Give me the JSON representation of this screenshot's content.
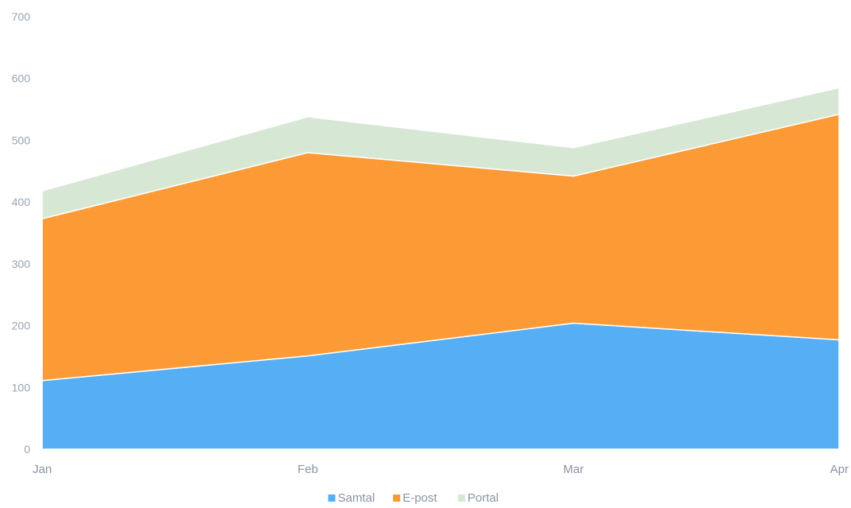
{
  "chart_data": {
    "type": "area",
    "stacked": true,
    "categories": [
      "Jan",
      "Feb",
      "Mar",
      "Apr"
    ],
    "series": [
      {
        "name": "Samtal",
        "values": [
          111,
          151,
          204,
          177
        ],
        "color": "#56aef5"
      },
      {
        "name": "E-post",
        "values": [
          262,
          329,
          238,
          365
        ],
        "color": "#fc9a36"
      },
      {
        "name": "Portal",
        "values": [
          45,
          58,
          46,
          43
        ],
        "color": "#d6e7d4"
      }
    ],
    "ylim": [
      0,
      700
    ],
    "yticks": [
      0,
      100,
      200,
      300,
      400,
      500,
      600,
      700
    ],
    "grid": false,
    "legend_position": "bottom-center"
  }
}
